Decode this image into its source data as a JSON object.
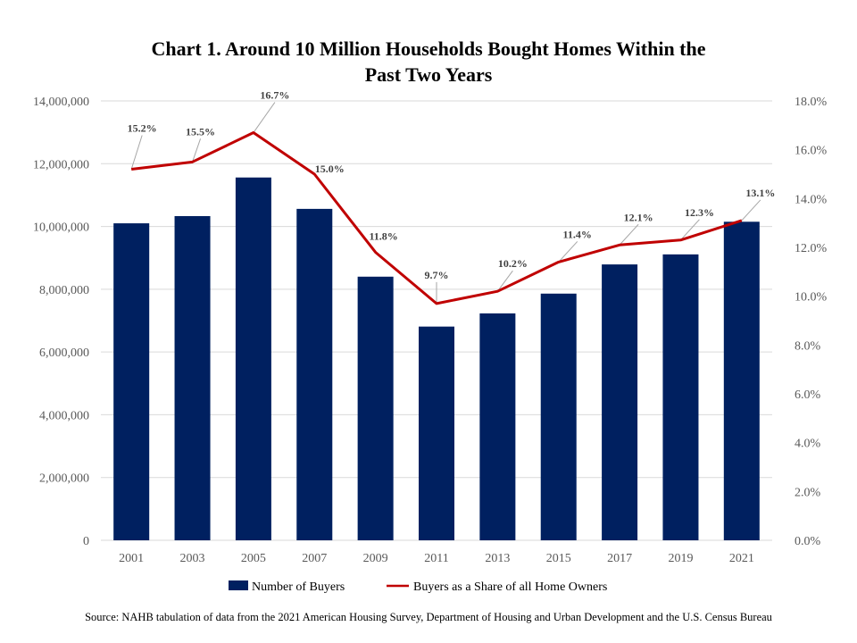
{
  "chart_data": {
    "type": "bar",
    "title": [
      "Chart 1. Around 10 Million Households Bought Homes Within the",
      "Past Two Years"
    ],
    "categories": [
      "2001",
      "2003",
      "2005",
      "2007",
      "2009",
      "2011",
      "2013",
      "2015",
      "2017",
      "2019",
      "2021"
    ],
    "series": [
      {
        "name": "Number of Buyers",
        "type": "bar",
        "axis": "left",
        "color": "#002060",
        "values": [
          10100000,
          10330000,
          11560000,
          10560000,
          8400000,
          6810000,
          7230000,
          7860000,
          8790000,
          9110000,
          10150000
        ]
      },
      {
        "name": "Buyers as a Share of all Home Owners",
        "type": "line",
        "axis": "right",
        "color": "#C00000",
        "values": [
          15.2,
          15.5,
          16.7,
          15.0,
          11.8,
          9.7,
          10.2,
          11.4,
          12.1,
          12.3,
          13.1
        ],
        "labels": [
          "15.2%",
          "15.5%",
          "16.7%",
          "15.0%",
          "11.8%",
          "9.7%",
          "10.2%",
          "11.4%",
          "12.1%",
          "12.3%",
          "13.1%"
        ]
      }
    ],
    "y_left": {
      "ylim": [
        0,
        14000000
      ],
      "ticks": [
        0,
        2000000,
        4000000,
        6000000,
        8000000,
        10000000,
        12000000,
        14000000
      ],
      "tick_labels": [
        "0",
        "2,000,000",
        "4,000,000",
        "6,000,000",
        "8,000,000",
        "10,000,000",
        "12,000,000",
        "14,000,000"
      ]
    },
    "y_right": {
      "ylim": [
        0,
        18
      ],
      "ticks": [
        0,
        2,
        4,
        6,
        8,
        10,
        12,
        14,
        16,
        18
      ],
      "tick_labels": [
        "0.0%",
        "2.0%",
        "4.0%",
        "6.0%",
        "8.0%",
        "10.0%",
        "12.0%",
        "14.0%",
        "16.0%",
        "18.0%"
      ]
    },
    "grid": true,
    "legend": "bottom",
    "source": "Source: NAHB tabulation of data from the 2021 American Housing Survey, Department of Housing and Urban Development and the U.S. Census Bureau"
  }
}
